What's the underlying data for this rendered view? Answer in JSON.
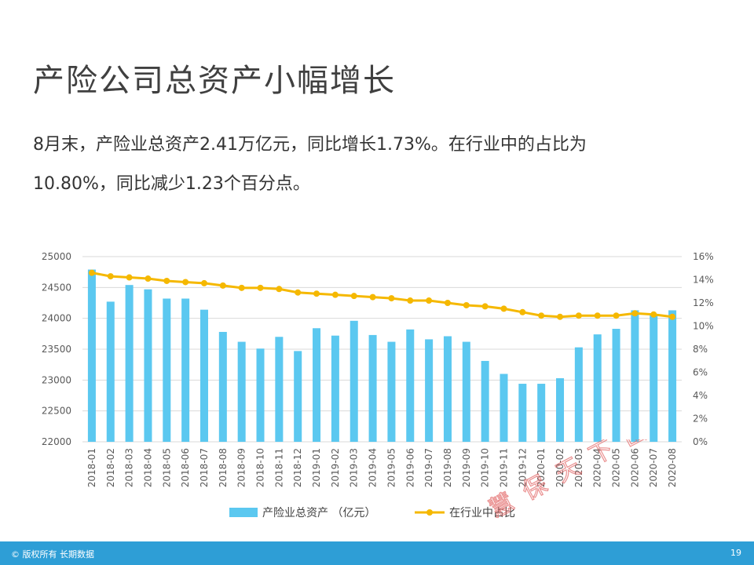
{
  "page": {
    "title": "产险公司总资产小幅增长",
    "text_line1": "8月末，产险业总资产2.41万亿元，同比增长1.73%。在行业中的占比为",
    "text_line2": "10.80%，同比减少1.23个百分点。",
    "footer_copyright": "© 版权所有 长期数据",
    "page_number": "19",
    "watermark": "慧保天下出品"
  },
  "chart_data": {
    "type": "bar",
    "categories": [
      "2018-01",
      "2018-02",
      "2018-03",
      "2018-04",
      "2018-05",
      "2018-06",
      "2018-07",
      "2018-08",
      "2018-09",
      "2018-10",
      "2018-11",
      "2018-12",
      "2019-01",
      "2019-02",
      "2019-03",
      "2019-04",
      "2019-05",
      "2019-06",
      "2019-07",
      "2019-08",
      "2019-09",
      "2019-10",
      "2019-11",
      "2019-12",
      "2020-01",
      "2020-02",
      "2020-03",
      "2020-04",
      "2020-05",
      "2020-06",
      "2020-07",
      "2020-08"
    ],
    "series": [
      {
        "name": "产险业总资产 （亿元）",
        "type": "bar",
        "axis": "left",
        "color": "#5bc8f0",
        "values": [
          24790,
          24270,
          24540,
          24470,
          24320,
          24320,
          24140,
          23780,
          23620,
          23510,
          23700,
          23470,
          23840,
          23720,
          23960,
          23730,
          23620,
          23820,
          23660,
          23710,
          23620,
          23310,
          23100,
          22940,
          22940,
          23030,
          23530,
          23740,
          23830,
          24130,
          24060,
          24130
        ]
      },
      {
        "name": "在行业中占比",
        "type": "line",
        "axis": "right",
        "color": "#f5b800",
        "values": [
          14.6,
          14.3,
          14.2,
          14.1,
          13.9,
          13.8,
          13.7,
          13.5,
          13.3,
          13.3,
          13.2,
          12.9,
          12.8,
          12.7,
          12.6,
          12.5,
          12.4,
          12.2,
          12.2,
          12.0,
          11.8,
          11.7,
          11.5,
          11.2,
          10.9,
          10.8,
          10.9,
          10.9,
          10.9,
          11.1,
          11.0,
          10.8
        ]
      }
    ],
    "ylim_left": [
      22000,
      25000
    ],
    "yticks_left": [
      "22000",
      "22500",
      "23000",
      "23500",
      "24000",
      "24500",
      "25000"
    ],
    "ylim_right": [
      0,
      16
    ],
    "yticks_right": [
      "0%",
      "2%",
      "4%",
      "6%",
      "8%",
      "10%",
      "12%",
      "14%",
      "16%"
    ],
    "grid": true,
    "legend_position": "bottom"
  }
}
